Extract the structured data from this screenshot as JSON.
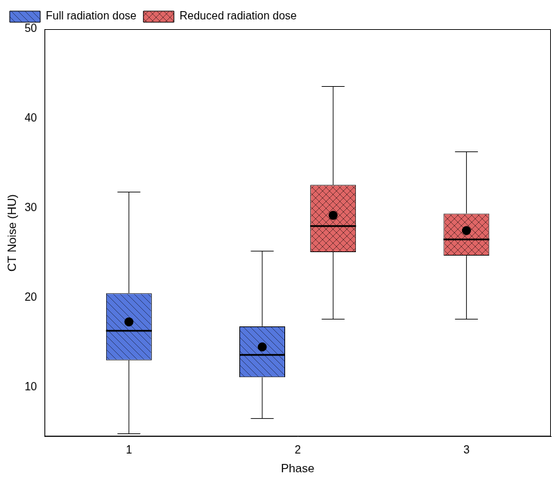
{
  "chart_data": {
    "type": "boxplot",
    "x_label": "Phase",
    "y_label": "CT Noise (HU)",
    "categories": [
      "1",
      "2",
      "3"
    ],
    "series": [
      {
        "name": "Full radiation dose",
        "color": "#5577dd",
        "values": [
          {
            "min": 4.8,
            "q1": 13.0,
            "median": 16.3,
            "q3": 20.5,
            "max": 31.8,
            "mean": 17.3
          },
          {
            "min": 6.5,
            "q1": 11.1,
            "median": 13.6,
            "q3": 16.8,
            "max": 25.2,
            "mean": 14.5
          },
          null
        ]
      },
      {
        "name": "Reduced radiation dose",
        "color": "#e06666",
        "values": [
          null,
          {
            "min": 17.6,
            "q1": 25.1,
            "median": 28.0,
            "q3": 32.6,
            "max": 43.6,
            "mean": 29.2
          },
          {
            "min": 17.6,
            "q1": 24.7,
            "median": 26.5,
            "q3": 29.4,
            "max": 36.3,
            "mean": 27.5
          }
        ]
      }
    ],
    "marker": "circle",
    "ylim": [
      4.5,
      50
    ],
    "yticks": [
      10,
      20,
      30,
      40,
      50
    ],
    "grid": false,
    "legend": "upper left"
  }
}
